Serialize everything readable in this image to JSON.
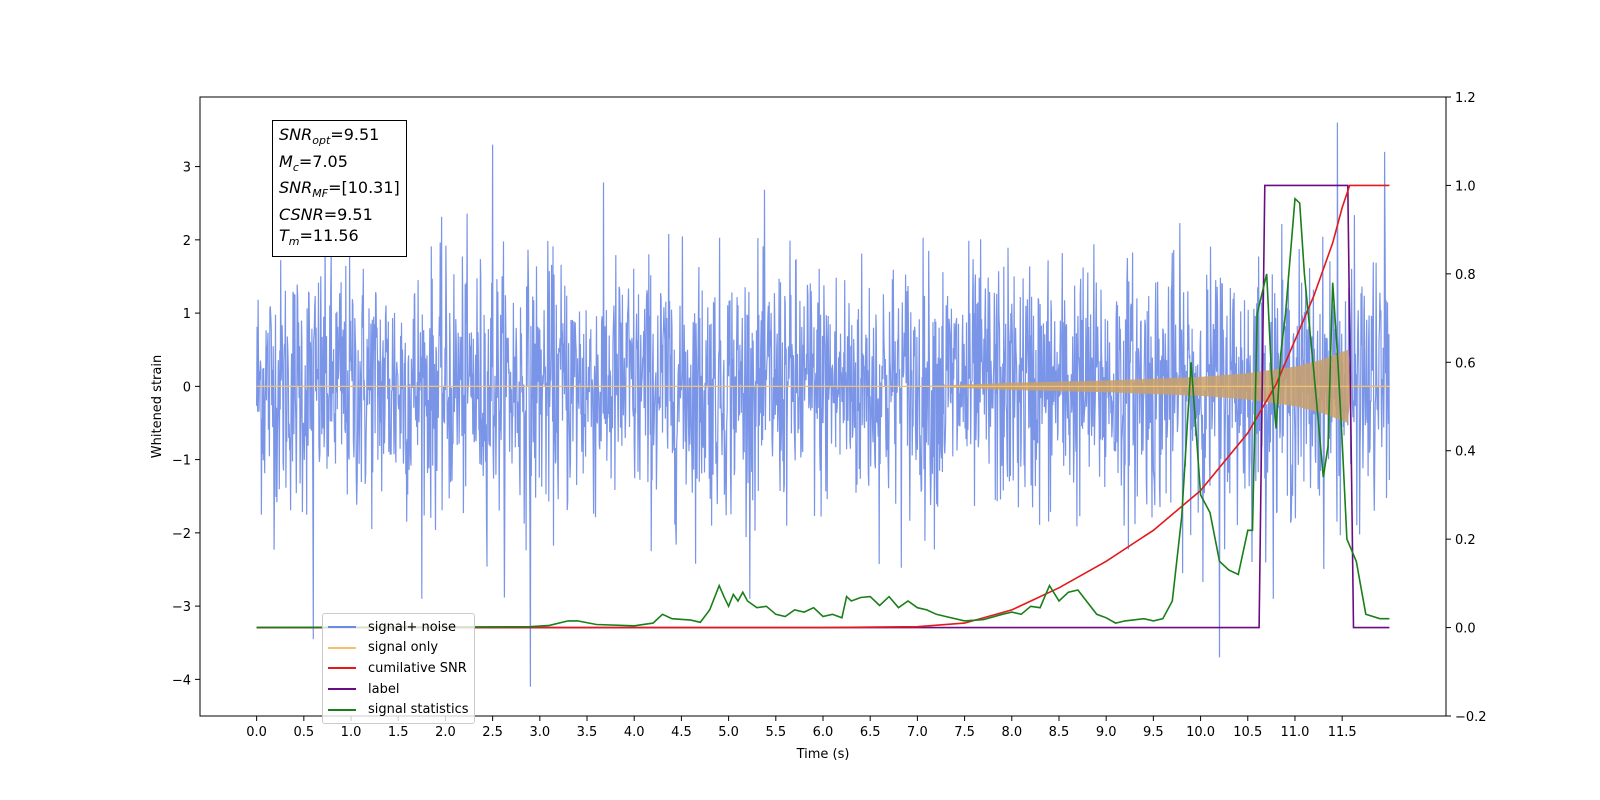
{
  "chart_data": {
    "type": "line",
    "xlabel": "Time (s)",
    "ylabel": "Whitened strain",
    "x_ticks": [
      "0.0",
      "0.5",
      "1.0",
      "1.5",
      "2.0",
      "2.5",
      "3.0",
      "3.5",
      "4.0",
      "4.5",
      "5.0",
      "5.5",
      "6.0",
      "6.5",
      "7.0",
      "7.5",
      "8.0",
      "8.5",
      "9.0",
      "9.5",
      "10.0",
      "10.5",
      "11.0",
      "11.5"
    ],
    "y_left_ticks": [
      "3",
      "2",
      "1",
      "0",
      "−1",
      "−2",
      "−3",
      "−4"
    ],
    "y_left_tick_values": [
      3,
      2,
      1,
      0,
      -1,
      -2,
      -3,
      -4
    ],
    "y_right_ticks": [
      "1.2",
      "1.0",
      "0.8",
      "0.6",
      "0.4",
      "0.2",
      "0.0",
      "−0.2"
    ],
    "y_right_tick_values": [
      1.2,
      1.0,
      0.8,
      0.6,
      0.4,
      0.2,
      0.0,
      -0.2
    ],
    "xlim": [
      -0.6,
      12.6
    ],
    "ylim_left": [
      -4.5,
      3.95
    ],
    "ylim_right": [
      -0.2,
      1.2
    ],
    "grid": false,
    "legend_position": "lower-left",
    "annotation": {
      "snr_opt": "=9.51",
      "mc": "=7.05",
      "snr_mf": "=[10.31]",
      "csnr": "=9.51",
      "tm": "=11.56"
    },
    "series": [
      {
        "name": "signal+ noise",
        "axis": "left",
        "color": "#6b8ae6",
        "description": "white noise, std ~0.85, from 0.0 to 12.0 s",
        "x_range": [
          0.0,
          12.0
        ],
        "notable_peaks": [
          [
            0.6,
            -3.45
          ],
          [
            2.5,
            3.3
          ],
          [
            2.9,
            -4.1
          ],
          [
            10.2,
            -3.7
          ],
          [
            11.45,
            3.6
          ],
          [
            11.95,
            3.2
          ]
        ]
      },
      {
        "name": "signal only",
        "axis": "left",
        "color": "#f5c16c",
        "description": "chirp, amplitude grows from ~0 at 7.0 s to ~0.5 at 11.56 s, then stops",
        "amplitude": [
          [
            0.0,
            0.0
          ],
          [
            7.0,
            0.0
          ],
          [
            8.0,
            0.05
          ],
          [
            9.0,
            0.08
          ],
          [
            10.0,
            0.13
          ],
          [
            10.5,
            0.18
          ],
          [
            11.0,
            0.27
          ],
          [
            11.3,
            0.37
          ],
          [
            11.56,
            0.5
          ],
          [
            11.6,
            0.01
          ],
          [
            12.0,
            0.01
          ]
        ]
      },
      {
        "name": "cumilative SNR",
        "axis": "right",
        "color": "#e31a1c",
        "x": [
          0.0,
          6.0,
          7.0,
          7.5,
          8.0,
          8.5,
          9.0,
          9.5,
          10.0,
          10.5,
          10.8,
          11.0,
          11.2,
          11.4,
          11.5,
          11.58,
          12.0
        ],
        "values": [
          0.0,
          0.0,
          0.002,
          0.01,
          0.04,
          0.09,
          0.15,
          0.22,
          0.31,
          0.44,
          0.55,
          0.65,
          0.75,
          0.87,
          0.95,
          1.0,
          1.0
        ]
      },
      {
        "name": "label",
        "axis": "right",
        "color": "#6a0d83",
        "x": [
          0.0,
          10.62,
          10.68,
          11.56,
          11.62,
          12.0
        ],
        "values": [
          0.0,
          0.0,
          1.0,
          1.0,
          0.0,
          0.0
        ]
      },
      {
        "name": "signal statistics",
        "axis": "right",
        "color": "#1a7f1a",
        "x": [
          0.0,
          2.9,
          3.1,
          3.3,
          3.4,
          3.6,
          4.0,
          4.2,
          4.3,
          4.4,
          4.6,
          4.7,
          4.8,
          4.9,
          4.95,
          5.0,
          5.05,
          5.1,
          5.15,
          5.2,
          5.3,
          5.4,
          5.5,
          5.6,
          5.7,
          5.8,
          5.9,
          6.0,
          6.1,
          6.2,
          6.25,
          6.3,
          6.4,
          6.5,
          6.6,
          6.7,
          6.8,
          6.9,
          7.0,
          7.1,
          7.2,
          7.3,
          7.5,
          7.7,
          7.9,
          8.0,
          8.1,
          8.2,
          8.3,
          8.35,
          8.4,
          8.5,
          8.6,
          8.7,
          8.9,
          9.0,
          9.1,
          9.2,
          9.4,
          9.5,
          9.6,
          9.7,
          9.8,
          9.9,
          9.95,
          10.0,
          10.1,
          10.2,
          10.3,
          10.4,
          10.5,
          10.55,
          10.6,
          10.7,
          10.75,
          10.8,
          10.85,
          10.9,
          11.0,
          11.05,
          11.1,
          11.2,
          11.3,
          11.35,
          11.4,
          11.45,
          11.5,
          11.55,
          11.65,
          11.75,
          11.9,
          12.0
        ],
        "values": [
          0.0,
          0.002,
          0.005,
          0.015,
          0.015,
          0.007,
          0.004,
          0.01,
          0.03,
          0.02,
          0.017,
          0.012,
          0.04,
          0.095,
          0.07,
          0.048,
          0.075,
          0.06,
          0.08,
          0.06,
          0.045,
          0.048,
          0.03,
          0.025,
          0.04,
          0.035,
          0.045,
          0.025,
          0.03,
          0.022,
          0.07,
          0.06,
          0.068,
          0.07,
          0.05,
          0.07,
          0.045,
          0.06,
          0.045,
          0.04,
          0.03,
          0.025,
          0.015,
          0.018,
          0.03,
          0.035,
          0.03,
          0.048,
          0.045,
          0.07,
          0.095,
          0.06,
          0.08,
          0.085,
          0.03,
          0.022,
          0.01,
          0.015,
          0.02,
          0.015,
          0.02,
          0.06,
          0.25,
          0.6,
          0.45,
          0.3,
          0.26,
          0.15,
          0.13,
          0.12,
          0.22,
          0.22,
          0.71,
          0.8,
          0.58,
          0.45,
          0.62,
          0.71,
          0.97,
          0.96,
          0.8,
          0.58,
          0.34,
          0.41,
          0.78,
          0.62,
          0.42,
          0.2,
          0.15,
          0.03,
          0.02,
          0.02
        ]
      }
    ]
  }
}
